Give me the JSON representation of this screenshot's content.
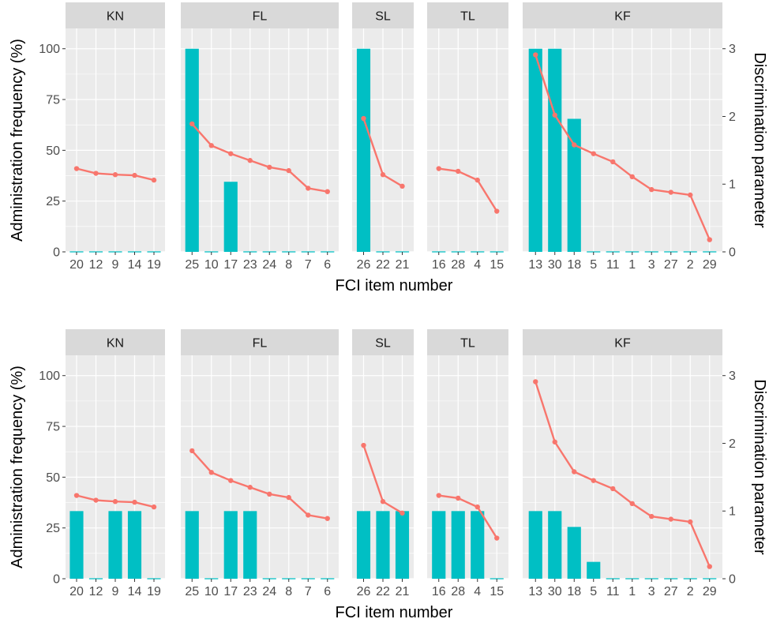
{
  "chart_data": [
    {
      "type": "bar",
      "xlabel": "FCI item number",
      "ylabel": "Administration frequency (%)",
      "y2label": "Discrimination parameter",
      "ylim": [
        0,
        110
      ],
      "y2lim": [
        0,
        3.3
      ],
      "yticks": [
        0,
        25,
        50,
        75,
        100
      ],
      "y2ticks": [
        0,
        1,
        2,
        3
      ],
      "grid": true,
      "facets": [
        {
          "label": "KN",
          "items": [
            "20",
            "12",
            "9",
            "14",
            "19"
          ],
          "frequency": [
            0,
            0,
            0,
            0,
            0
          ],
          "discrimination": [
            1.23,
            1.16,
            1.14,
            1.13,
            1.06
          ]
        },
        {
          "label": "FL",
          "items": [
            "25",
            "10",
            "17",
            "23",
            "24",
            "8",
            "7",
            "6"
          ],
          "frequency": [
            100,
            0,
            34.5,
            0,
            0,
            0,
            0,
            0
          ],
          "discrimination": [
            1.89,
            1.57,
            1.45,
            1.35,
            1.25,
            1.2,
            0.94,
            0.89
          ]
        },
        {
          "label": "SL",
          "items": [
            "26",
            "22",
            "21"
          ],
          "frequency": [
            100,
            0,
            0
          ],
          "discrimination": [
            1.97,
            1.14,
            0.97
          ]
        },
        {
          "label": "TL",
          "items": [
            "16",
            "28",
            "4",
            "15"
          ],
          "frequency": [
            0,
            0,
            0,
            0
          ],
          "discrimination": [
            1.23,
            1.19,
            1.06,
            0.6
          ]
        },
        {
          "label": "KF",
          "items": [
            "13",
            "30",
            "18",
            "5",
            "11",
            "1",
            "3",
            "27",
            "2",
            "29"
          ],
          "frequency": [
            100,
            100,
            65.5,
            0,
            0,
            0,
            0,
            0,
            0,
            0
          ],
          "discrimination": [
            2.91,
            2.02,
            1.58,
            1.45,
            1.33,
            1.11,
            0.92,
            0.88,
            0.84,
            0.18
          ]
        }
      ]
    },
    {
      "type": "bar",
      "xlabel": "FCI item number",
      "ylabel": "Administration frequency (%)",
      "y2label": "Discrimination parameter",
      "ylim": [
        0,
        110
      ],
      "y2lim": [
        0,
        3.3
      ],
      "yticks": [
        0,
        25,
        50,
        75,
        100
      ],
      "y2ticks": [
        0,
        1,
        2,
        3
      ],
      "grid": true,
      "facets": [
        {
          "label": "KN",
          "items": [
            "20",
            "12",
            "9",
            "14",
            "19"
          ],
          "frequency": [
            33.3,
            0,
            33.3,
            33.3,
            0
          ],
          "discrimination": [
            1.23,
            1.16,
            1.14,
            1.13,
            1.06
          ]
        },
        {
          "label": "FL",
          "items": [
            "25",
            "10",
            "17",
            "23",
            "24",
            "8",
            "7",
            "6"
          ],
          "frequency": [
            33.3,
            0,
            33.3,
            33.3,
            0,
            0,
            0,
            0
          ],
          "discrimination": [
            1.89,
            1.57,
            1.45,
            1.35,
            1.25,
            1.2,
            0.94,
            0.89
          ]
        },
        {
          "label": "SL",
          "items": [
            "26",
            "22",
            "21"
          ],
          "frequency": [
            33.3,
            33.3,
            33.3
          ],
          "discrimination": [
            1.97,
            1.14,
            0.97
          ]
        },
        {
          "label": "TL",
          "items": [
            "16",
            "28",
            "4",
            "15"
          ],
          "frequency": [
            33.3,
            33.3,
            33.3,
            0
          ],
          "discrimination": [
            1.23,
            1.19,
            1.06,
            0.6
          ]
        },
        {
          "label": "KF",
          "items": [
            "13",
            "30",
            "18",
            "5",
            "11",
            "1",
            "3",
            "27",
            "2",
            "29"
          ],
          "frequency": [
            33.3,
            33.3,
            25.5,
            8.3,
            0,
            0,
            0,
            0,
            0,
            0
          ],
          "discrimination": [
            2.91,
            2.02,
            1.58,
            1.45,
            1.33,
            1.11,
            0.92,
            0.88,
            0.84,
            0.18
          ]
        }
      ]
    }
  ],
  "colors": {
    "bar": "#00BFC4",
    "line": "#F8766D",
    "panel_bg": "#EBEBEB",
    "strip_bg": "#D9D9D9",
    "grid": "#FFFFFF"
  }
}
